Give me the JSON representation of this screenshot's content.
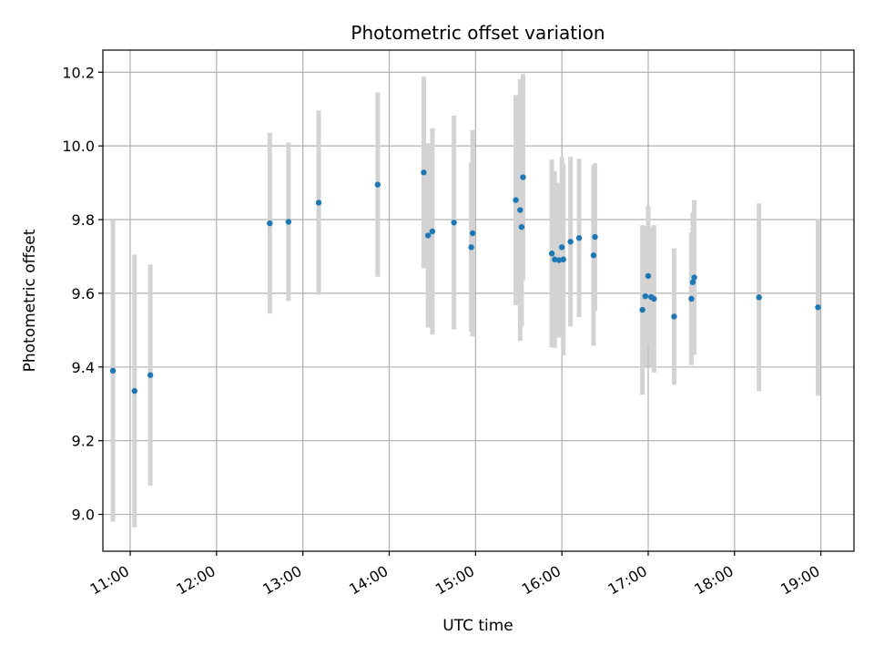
{
  "chart_data": {
    "type": "scatter",
    "title": "Photometric offset variation",
    "xlabel": "UTC time",
    "ylabel": "Photometric offset",
    "x_ticks": [
      "11:00",
      "12:00",
      "13:00",
      "14:00",
      "15:00",
      "16:00",
      "17:00",
      "18:00",
      "19:00"
    ],
    "y_ticks": [
      "9.0",
      "9.2",
      "9.4",
      "9.6",
      "9.8",
      "10.0",
      "10.2"
    ],
    "xlim": [
      "10:41",
      "19:23"
    ],
    "ylim": [
      8.9,
      10.26
    ],
    "grid": true,
    "legend": false,
    "colors": {
      "point": "#1f77b4",
      "errorbar": "#d3d3d3",
      "grid": "#b0b0b0"
    },
    "points": [
      {
        "x": "10:48",
        "y": 9.39,
        "err": 0.41
      },
      {
        "x": "11:03",
        "y": 9.335,
        "err": 0.37
      },
      {
        "x": "11:14",
        "y": 9.378,
        "err": 0.3
      },
      {
        "x": "12:37",
        "y": 9.79,
        "err": 0.245
      },
      {
        "x": "12:50",
        "y": 9.794,
        "err": 0.215
      },
      {
        "x": "13:11",
        "y": 9.846,
        "err": 0.25
      },
      {
        "x": "13:52",
        "y": 9.895,
        "err": 0.25
      },
      {
        "x": "14:24",
        "y": 9.928,
        "err": 0.26
      },
      {
        "x": "14:27",
        "y": 9.757,
        "err": 0.25
      },
      {
        "x": "14:30",
        "y": 9.768,
        "err": 0.28
      },
      {
        "x": "14:45",
        "y": 9.792,
        "err": 0.29
      },
      {
        "x": "14:57",
        "y": 9.725,
        "err": 0.23
      },
      {
        "x": "14:58",
        "y": 9.763,
        "err": 0.28
      },
      {
        "x": "15:28",
        "y": 9.853,
        "err": 0.285
      },
      {
        "x": "15:31",
        "y": 9.826,
        "err": 0.355
      },
      {
        "x": "15:32",
        "y": 9.78,
        "err": 0.27
      },
      {
        "x": "15:33",
        "y": 9.915,
        "err": 0.28
      },
      {
        "x": "15:53",
        "y": 9.708,
        "err": 0.255
      },
      {
        "x": "15:55",
        "y": 9.692,
        "err": 0.24
      },
      {
        "x": "15:58",
        "y": 9.69,
        "err": 0.21
      },
      {
        "x": "16:00",
        "y": 9.725,
        "err": 0.245
      },
      {
        "x": "16:01",
        "y": 9.692,
        "err": 0.26
      },
      {
        "x": "16:06",
        "y": 9.74,
        "err": 0.23
      },
      {
        "x": "16:12",
        "y": 9.75,
        "err": 0.215
      },
      {
        "x": "16:22",
        "y": 9.703,
        "err": 0.245
      },
      {
        "x": "16:23",
        "y": 9.753,
        "err": 0.2
      },
      {
        "x": "16:56",
        "y": 9.555,
        "err": 0.23
      },
      {
        "x": "16:58",
        "y": 9.592,
        "err": 0.19
      },
      {
        "x": "17:00",
        "y": 9.647,
        "err": 0.19
      },
      {
        "x": "17:02",
        "y": 9.59,
        "err": 0.19
      },
      {
        "x": "17:04",
        "y": 9.585,
        "err": 0.2
      },
      {
        "x": "17:18",
        "y": 9.537,
        "err": 0.185
      },
      {
        "x": "17:30",
        "y": 9.585,
        "err": 0.18
      },
      {
        "x": "17:31",
        "y": 9.63,
        "err": 0.19
      },
      {
        "x": "17:32",
        "y": 9.643,
        "err": 0.21
      },
      {
        "x": "18:17",
        "y": 9.589,
        "err": 0.255
      },
      {
        "x": "18:58",
        "y": 9.562,
        "err": 0.24
      }
    ]
  }
}
